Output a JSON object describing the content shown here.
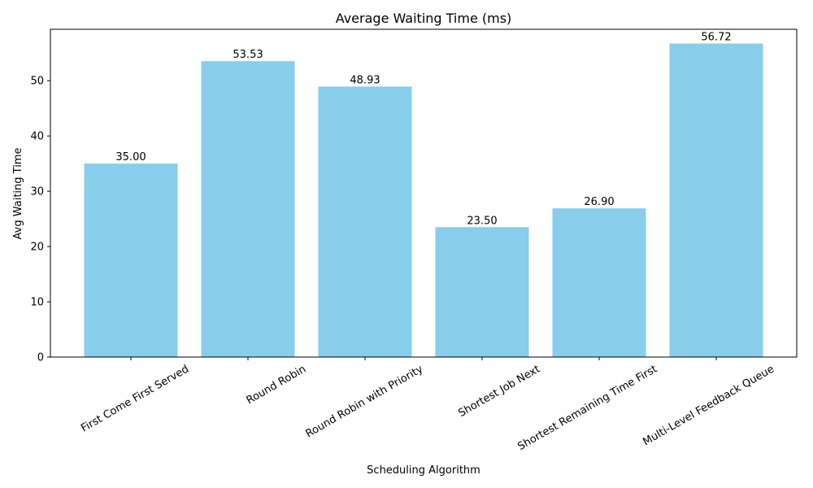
{
  "chart_data": {
    "type": "bar",
    "title": "Average Waiting Time (ms)",
    "xlabel": "Scheduling Algorithm",
    "ylabel": "Avg Waiting Time",
    "categories": [
      "First Come First Served",
      "Round Robin",
      "Round Robin with Priority",
      "Shortest Job Next",
      "Shortest Remaining Time First",
      "Multi-Level Feedback Queue"
    ],
    "values": [
      35.0,
      53.53,
      48.93,
      23.5,
      26.9,
      56.72
    ],
    "data_labels": [
      "35.00",
      "53.53",
      "48.93",
      "23.50",
      "26.90",
      "56.72"
    ],
    "yticks": [
      0,
      10,
      20,
      30,
      40,
      50
    ],
    "ylim": [
      0,
      59.3
    ],
    "bar_color": "#87ceeb",
    "grid": false,
    "legend": "none"
  }
}
